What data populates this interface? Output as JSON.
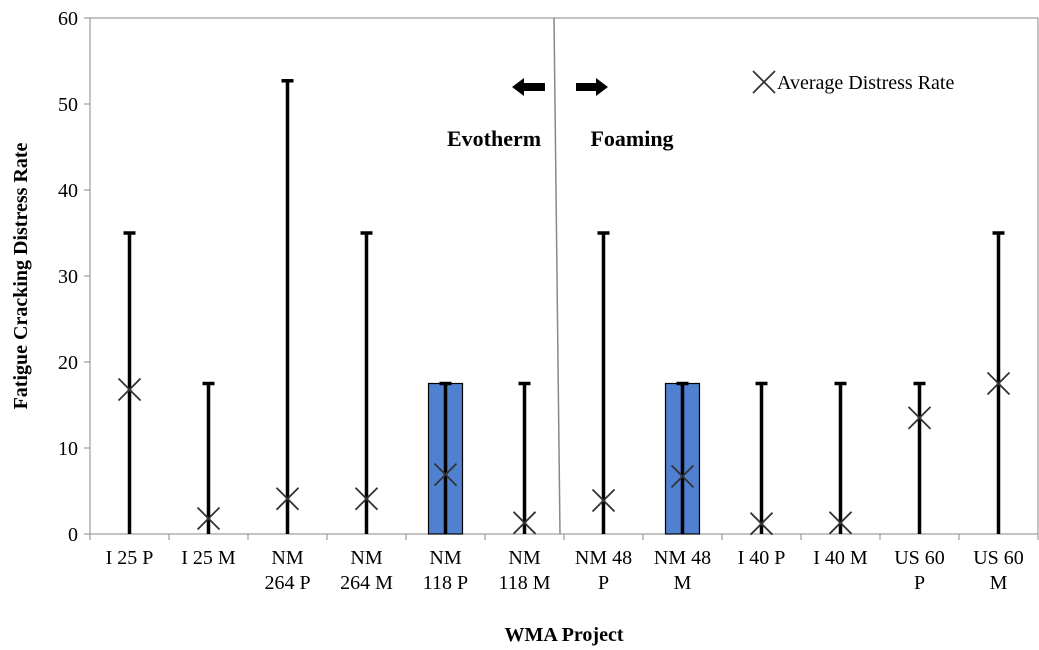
{
  "chart_data": {
    "type": "bar",
    "xlabel": "WMA Project",
    "ylabel": "Fatigue Cracking Distress Rate",
    "ylim": [
      0,
      60
    ],
    "yticks": [
      "0",
      "10",
      "20",
      "30",
      "40",
      "50",
      "60"
    ],
    "grid": false,
    "legend_position": "top-right",
    "categories": [
      [
        "I 25 P"
      ],
      [
        "I 25 M"
      ],
      [
        "NM",
        "264 P"
      ],
      [
        "NM",
        "264 M"
      ],
      [
        "NM",
        "118 P"
      ],
      [
        "NM",
        "118 M"
      ],
      [
        "NM 48",
        "P"
      ],
      [
        "NM 48",
        "M"
      ],
      [
        "I 40 P"
      ],
      [
        "I 40 M"
      ],
      [
        "US 60",
        "P"
      ],
      [
        "US 60",
        "M"
      ]
    ],
    "series": [
      {
        "name": "Average Distress Rate",
        "marker": "x",
        "values": [
          16.8,
          1.8,
          4.1,
          4.1,
          6.9,
          1.3,
          3.9,
          6.7,
          1.2,
          1.3,
          13.5,
          17.5
        ]
      }
    ],
    "bars": [
      0,
      0,
      0,
      0,
      17.5,
      0,
      0,
      17.5,
      0,
      0,
      0,
      0
    ],
    "range_max": [
      35,
      17.5,
      52.7,
      35,
      17.5,
      17.5,
      35,
      17.5,
      17.5,
      17.5,
      17.5,
      35
    ],
    "range_min": [
      0,
      0,
      0,
      0,
      0,
      0,
      0,
      0,
      0,
      0,
      0,
      0
    ],
    "colors": {
      "bar": "#4f81d0",
      "bar_stroke": "#000000",
      "range": "#000000",
      "marker": "#333333"
    },
    "annotations": {
      "left_group": "Evotherm",
      "right_group": "Foaming",
      "left_arrow": "arrow-left-icon",
      "right_arrow": "arrow-right-icon"
    },
    "divider_after_category": 6
  }
}
